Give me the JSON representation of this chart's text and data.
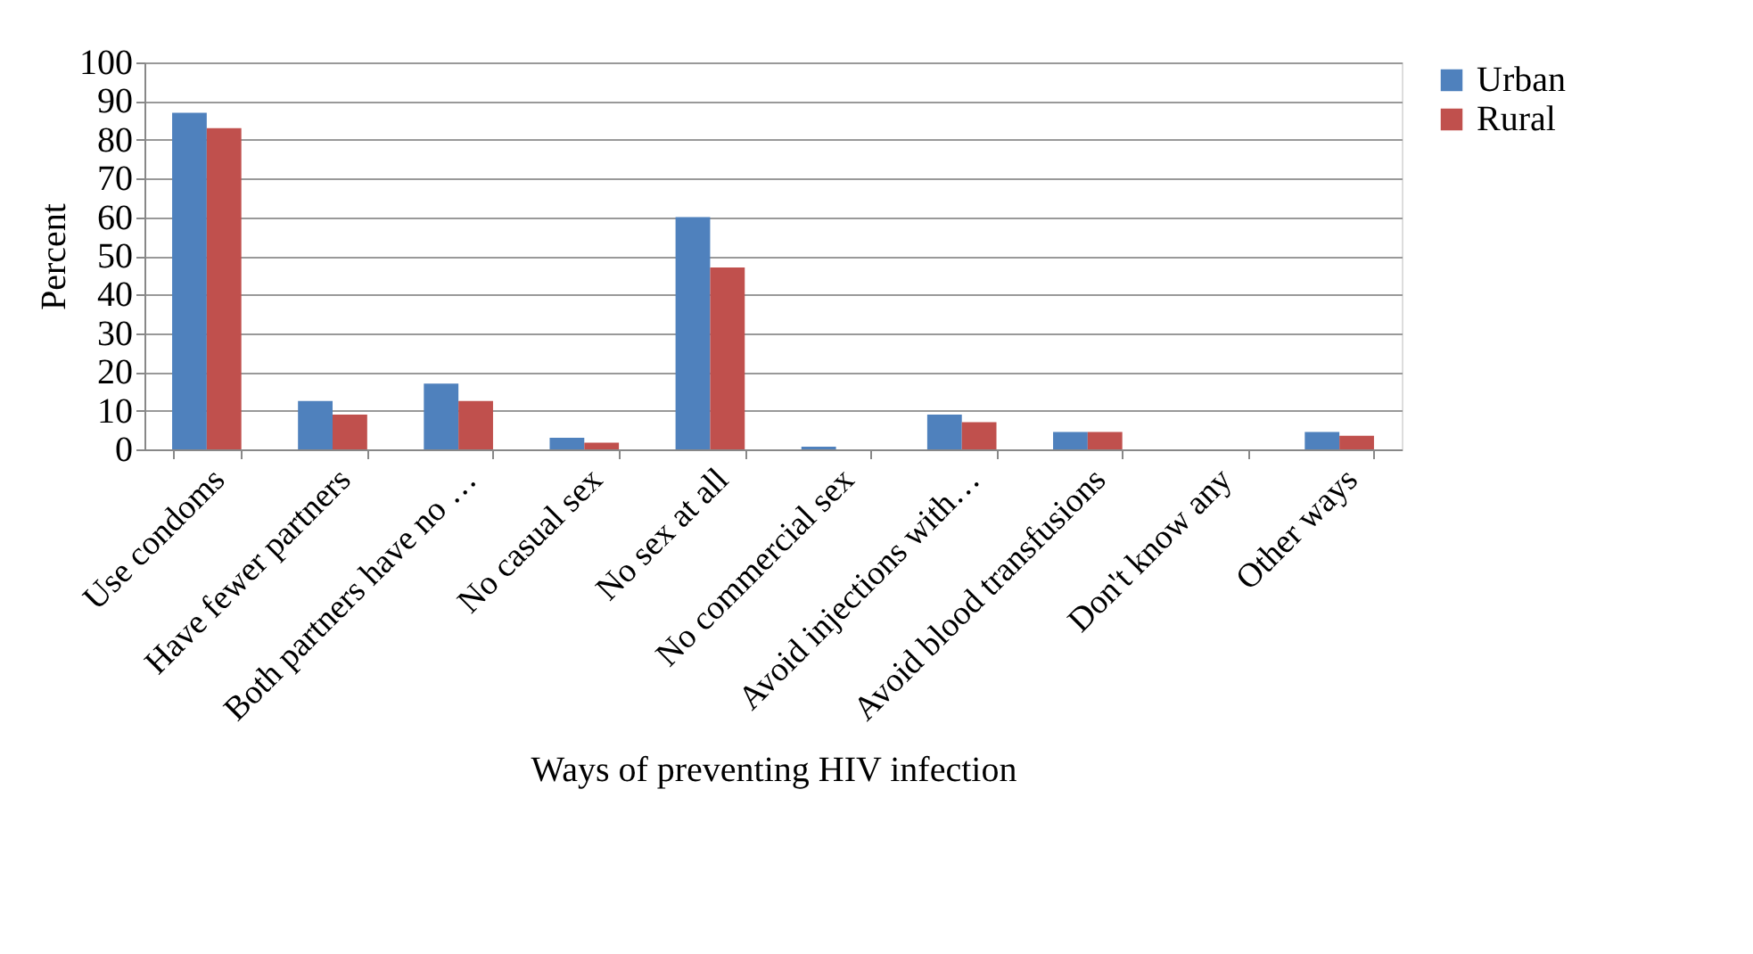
{
  "chart_data": {
    "type": "bar",
    "xlabel": "Ways of preventing HIV infection",
    "ylabel": "Percent",
    "categories": [
      "Use condoms",
      "Have fewer partners",
      "Both partners have no …",
      "No casual sex",
      "No sex at all",
      "No commercial sex",
      "Avoid injections with…",
      "Avoid blood transfusions",
      "Don't know any",
      "Other ways"
    ],
    "series": [
      {
        "name": "Urban",
        "color": "#4f81bd",
        "values": [
          87,
          12.5,
          17,
          3,
          60,
          0.7,
          9,
          4.5,
          0,
          4.5
        ]
      },
      {
        "name": "Rural",
        "color": "#c0504d",
        "values": [
          83,
          9,
          12.5,
          1.7,
          47,
          0,
          7,
          4.5,
          0,
          3.5
        ]
      }
    ],
    "ylim": [
      0,
      100
    ],
    "yticks": [
      0,
      10,
      20,
      30,
      40,
      50,
      60,
      70,
      80,
      90,
      100
    ],
    "grid": "y",
    "legend": "right"
  }
}
